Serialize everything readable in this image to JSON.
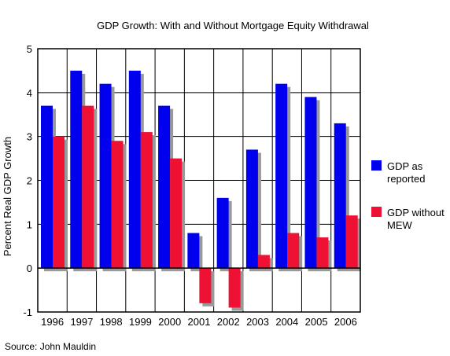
{
  "chart_data": {
    "type": "bar",
    "title": "GDP Growth: With and Without Mortgage Equity Withdrawal",
    "xlabel": "",
    "ylabel": "Percent Real GDP Growth",
    "categories": [
      "1996",
      "1997",
      "1998",
      "1999",
      "2000",
      "2001",
      "2002",
      "2003",
      "2004",
      "2005",
      "2006"
    ],
    "series": [
      {
        "name": "GDP as reported",
        "legend_lines": [
          "GDP as",
          "reported"
        ],
        "color": "#0000ee",
        "values": [
          3.7,
          4.5,
          4.2,
          4.5,
          3.7,
          0.8,
          1.6,
          2.7,
          4.2,
          3.9,
          3.3
        ]
      },
      {
        "name": "GDP without MEW",
        "legend_lines": [
          "GDP without",
          "MEW"
        ],
        "color": "#ee1133",
        "values": [
          3.0,
          3.7,
          2.9,
          3.1,
          2.5,
          -0.8,
          -0.9,
          0.3,
          0.8,
          0.7,
          1.2
        ]
      }
    ],
    "ylim": [
      -1,
      5
    ],
    "yticks": [
      -1,
      0,
      1,
      2,
      3,
      4,
      5
    ],
    "grid": true,
    "legend_position": "right",
    "shadow_color": "#999999"
  },
  "source": "Source: John Mauldin"
}
